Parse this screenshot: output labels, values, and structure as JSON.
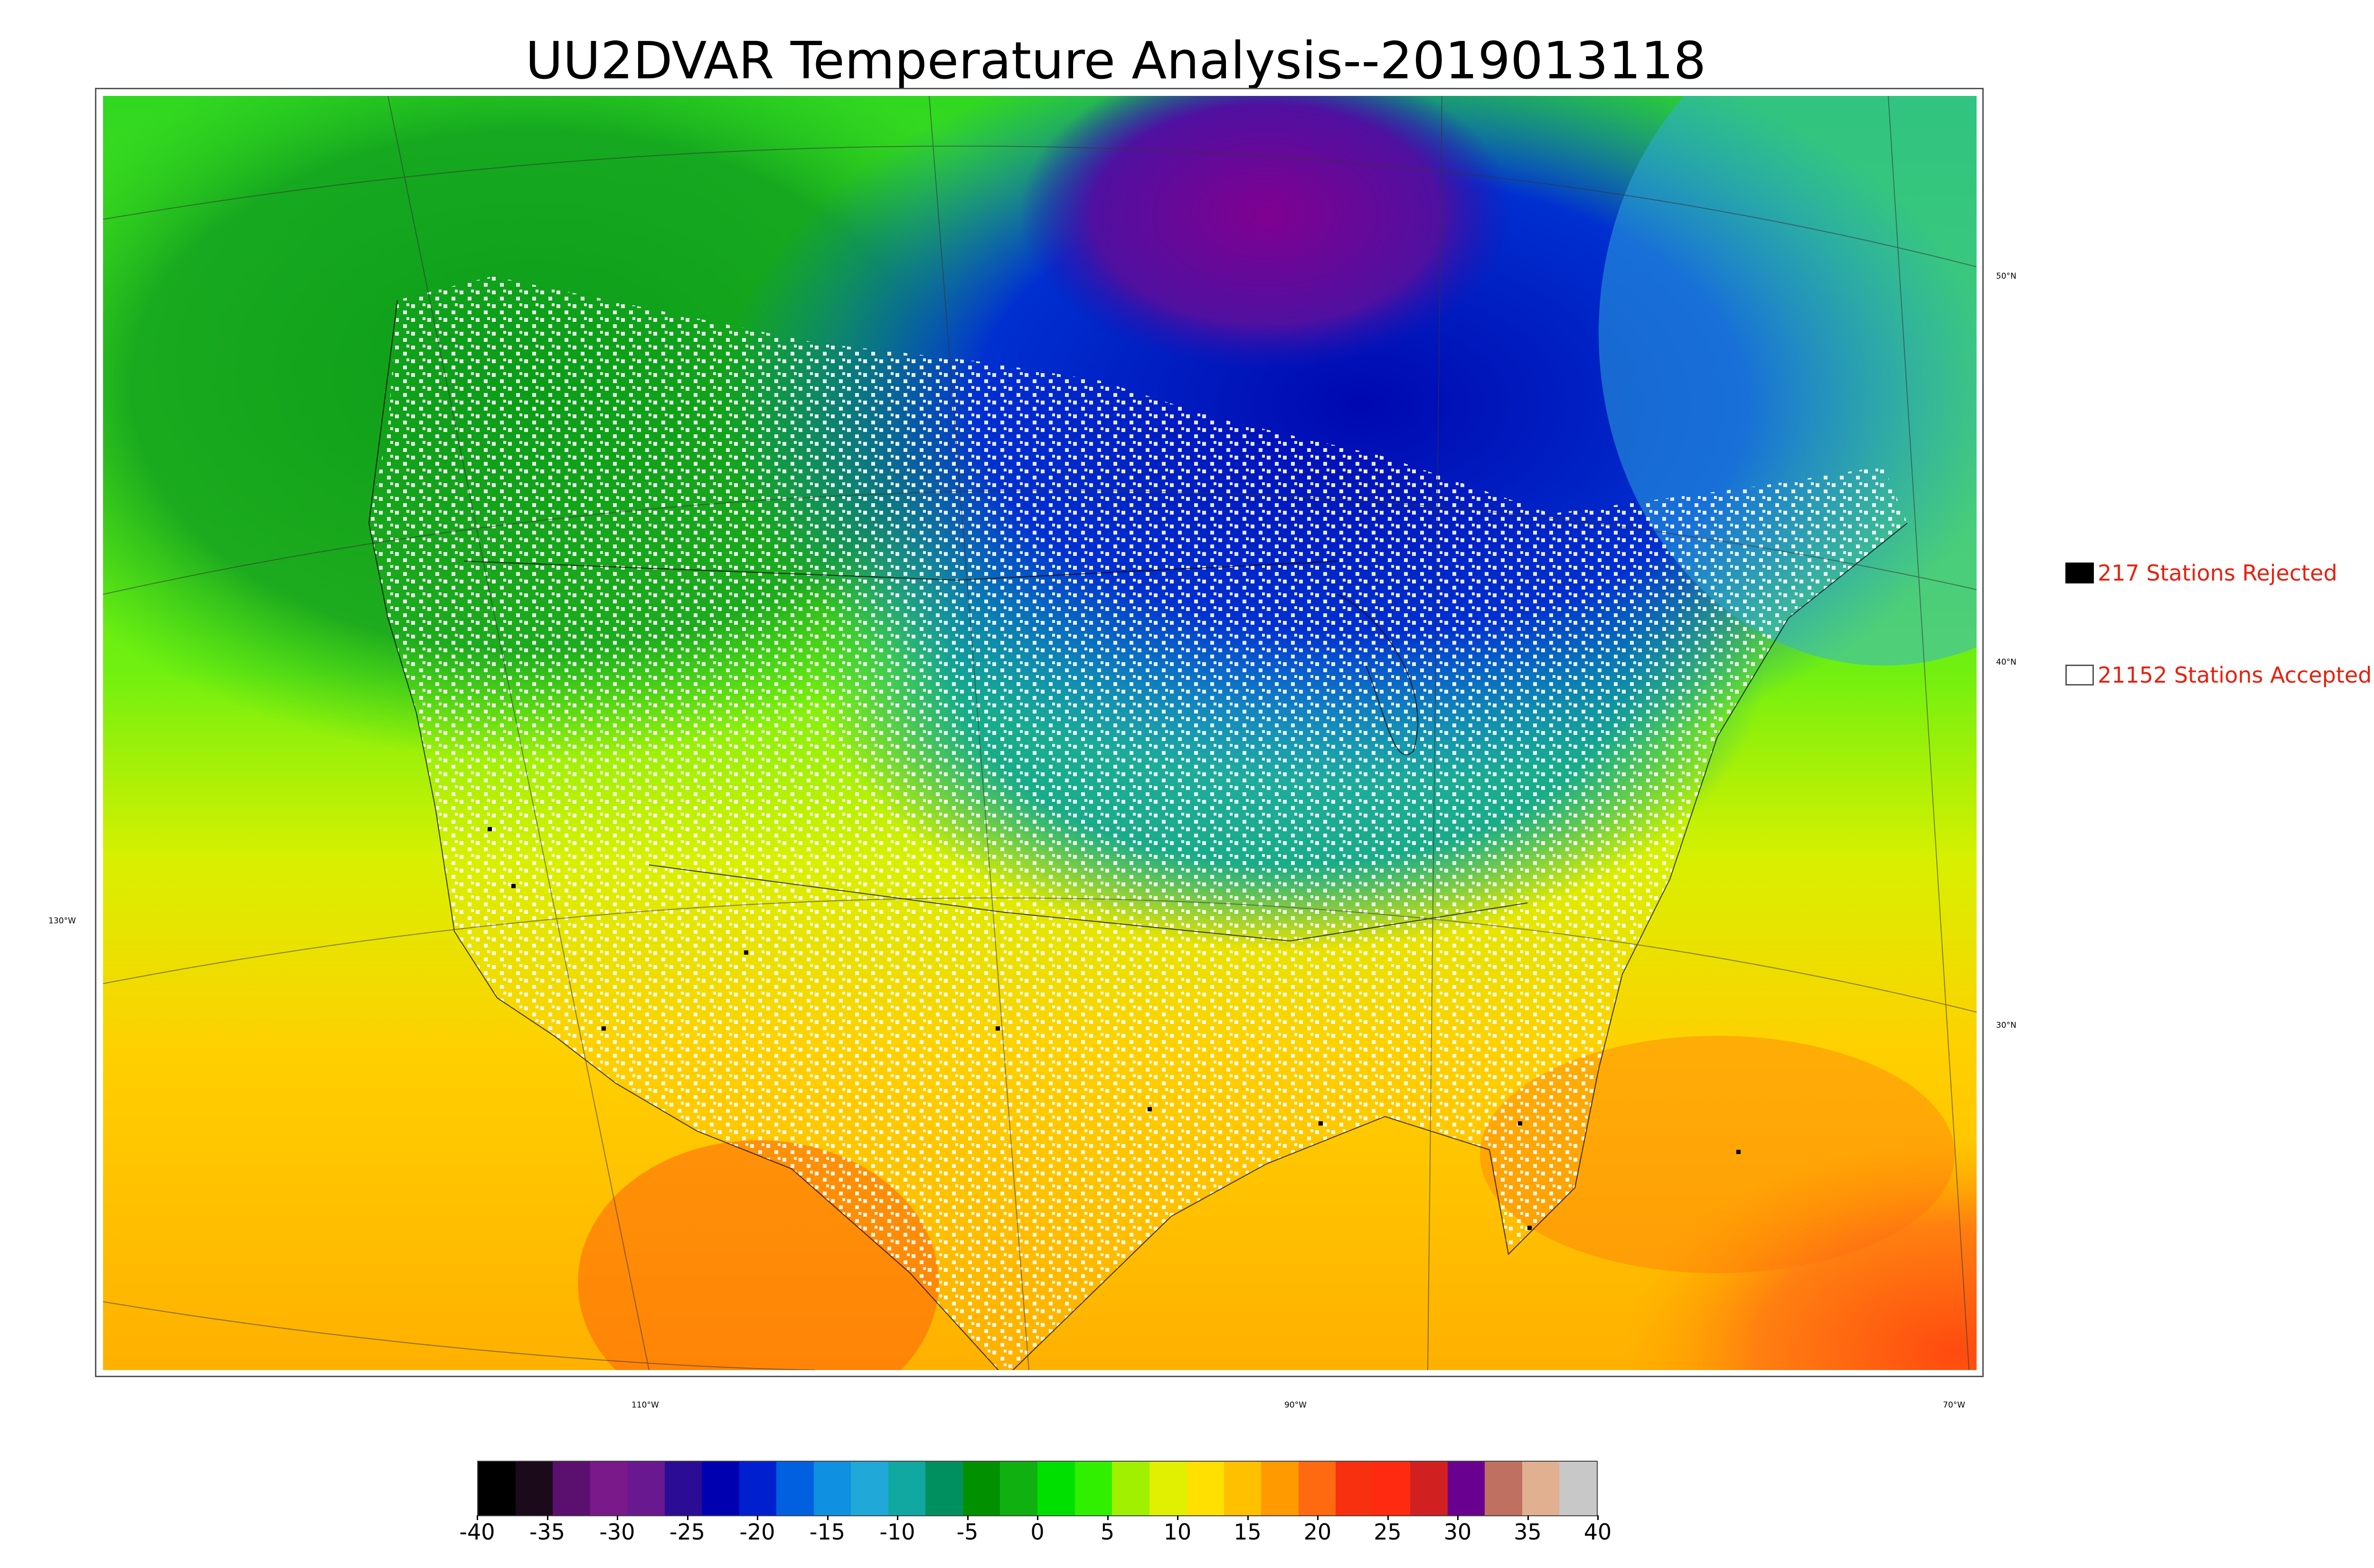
{
  "title": "UU2DVAR Temperature Analysis--2019013118",
  "map": {
    "lat_labels": [
      "50°N",
      "40°N",
      "30°N"
    ],
    "lon_labels": [
      "130°W",
      "110°W",
      "90°W",
      "70°W"
    ]
  },
  "legend": {
    "rejected": "217 Stations Rejected",
    "accepted": "21152 Stations Accepted",
    "text_color": "#e8200e"
  },
  "colorbar": {
    "min": -40,
    "max": 40,
    "tick_labels": [
      "-40",
      "-35",
      "-30",
      "-25",
      "-20",
      "-15",
      "-10",
      "-5",
      "0",
      "5",
      "10",
      "15",
      "20",
      "25",
      "30",
      "35",
      "40"
    ],
    "colors": [
      "#000000",
      "#1a0a1a",
      "#5b0f6e",
      "#7a1a8a",
      "#6a1890",
      "#2a0c95",
      "#0000b0",
      "#0020d0",
      "#0060e0",
      "#1090e0",
      "#20a8d8",
      "#10a8a0",
      "#009060",
      "#009000",
      "#10b010",
      "#00e000",
      "#30f000",
      "#a0f000",
      "#e0f000",
      "#ffe000",
      "#ffc000",
      "#ff9a00",
      "#ff6a10",
      "#f83010",
      "#ff2a10",
      "#d02020",
      "#6a0090",
      "#c07060",
      "#e0b090",
      "#c8c8c8"
    ]
  }
}
